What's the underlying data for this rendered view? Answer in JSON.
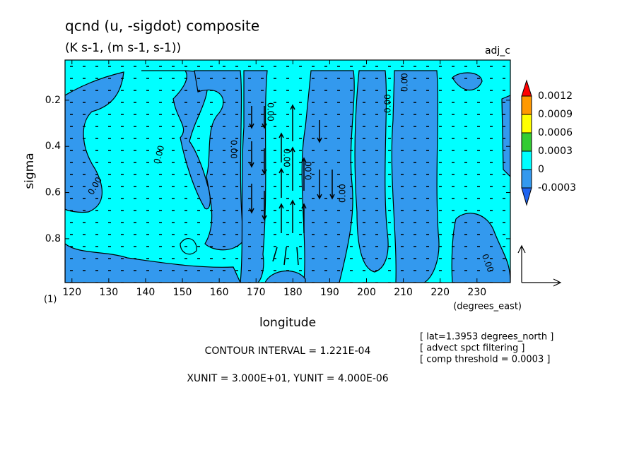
{
  "chart_data": {
    "type": "contour",
    "title": "qcnd (u, -sigdot) composite",
    "subtitle": "(K s-1, (m s-1, s-1))",
    "run_label": "adj_c",
    "xlabel": "longitude",
    "xunit_label": "(degrees_east)",
    "ylabel": "sigma",
    "ylabel_unit": "(1)",
    "xlim": [
      118.125,
      239.0625
    ],
    "ylim": [
      0.026,
      0.99
    ],
    "y_inverted": true,
    "xticks": [
      120,
      130,
      140,
      150,
      160,
      170,
      180,
      190,
      200,
      210,
      220,
      230
    ],
    "yticks": [
      0.2,
      0.4,
      0.6,
      0.8
    ],
    "colorbar": {
      "levels": [
        0.0012,
        0.0009,
        0.0006,
        0.0003,
        0,
        -0.0003
      ],
      "colors": [
        "#ff0000",
        "#ff9900",
        "#ffff00",
        "#33cc33",
        "#00ffff",
        "#3399ee",
        "#1e64f0"
      ]
    },
    "contour_labels": [
      "0.00",
      "0.00",
      "0.00",
      "0.00",
      "0.00",
      "0.00",
      "0.00",
      "0.00",
      "0.00",
      "0.00"
    ],
    "contour_interval": "CONTOUR INTERVAL = 1.221E-04",
    "vector_units": "XUNIT = 3.000E+01, YUNIT = 4.000E-06",
    "notes": [
      "[ lat=1.3953 degrees_north ]",
      "[ advect spct filtering ]",
      "[ comp threshold = 0.0003 ]"
    ]
  }
}
